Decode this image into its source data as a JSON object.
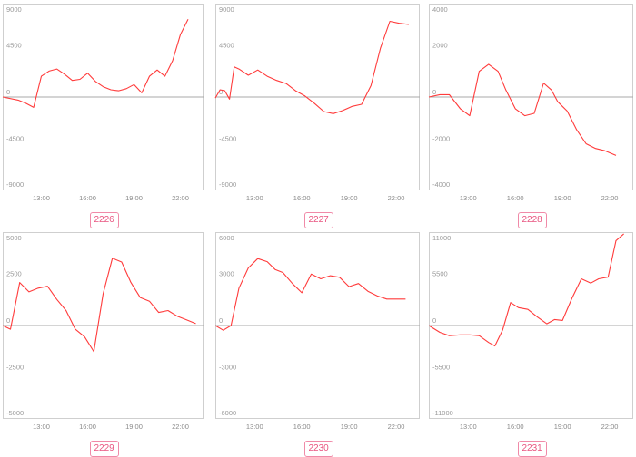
{
  "chart_data": [
    {
      "type": "line",
      "title": "2226",
      "x_ticks": [
        "13:00",
        "16:00",
        "19:00",
        "22:00"
      ],
      "y_ticks": [
        "9000",
        "4500",
        "0",
        "-4500",
        "-9000"
      ],
      "ylim": [
        -9000,
        9000
      ],
      "xlim": [
        10.5,
        23.5
      ],
      "series": [
        {
          "x": [
            10.5,
            11.5,
            12.0,
            12.5,
            13.0,
            13.5,
            14.0,
            14.5,
            15.0,
            15.5,
            16.0,
            16.5,
            17.0,
            17.5,
            18.0,
            18.5,
            19.0,
            19.5,
            20.0,
            20.5,
            21.0,
            21.5,
            22.0,
            22.5
          ],
          "values": [
            0,
            -300,
            -600,
            -1000,
            2000,
            2500,
            2700,
            2200,
            1600,
            1700,
            2300,
            1500,
            1000,
            700,
            600,
            800,
            1200,
            400,
            2000,
            2600,
            2000,
            3500,
            6000,
            7500
          ]
        }
      ]
    },
    {
      "type": "line",
      "title": "2227",
      "x_ticks": [
        "13:00",
        "16:00",
        "19:00",
        "22:00"
      ],
      "y_ticks": [
        "9000",
        "4500",
        "0",
        "-4500",
        "-9000"
      ],
      "ylim": [
        -9000,
        9000
      ],
      "xlim": [
        10.5,
        23.5
      ],
      "series": [
        {
          "x": [
            10.5,
            10.8,
            11.1,
            11.4,
            11.7,
            12.0,
            12.6,
            13.2,
            13.8,
            14.4,
            15.0,
            15.6,
            16.2,
            16.8,
            17.4,
            18.0,
            18.6,
            19.2,
            19.8,
            20.4,
            21.0,
            21.6,
            22.2,
            22.8
          ],
          "values": [
            -100,
            700,
            600,
            -200,
            2900,
            2700,
            2100,
            2600,
            2000,
            1600,
            1300,
            600,
            100,
            -600,
            -1400,
            -1600,
            -1300,
            -900,
            -700,
            1100,
            4700,
            7300,
            7100,
            7000
          ]
        }
      ]
    },
    {
      "type": "line",
      "title": "2228",
      "x_ticks": [
        "13:00",
        "16:00",
        "19:00",
        "22:00"
      ],
      "y_ticks": [
        "4000",
        "2000",
        "0",
        "-2000",
        "-4000"
      ],
      "ylim": [
        -4000,
        4000
      ],
      "xlim": [
        10.5,
        23.5
      ],
      "series": [
        {
          "x": [
            10.5,
            11.2,
            11.8,
            12.5,
            13.1,
            13.7,
            14.3,
            14.9,
            15.4,
            16.0,
            16.6,
            17.2,
            17.8,
            18.3,
            18.7,
            19.3,
            19.9,
            20.5,
            21.1,
            21.7,
            22.4
          ],
          "values": [
            0,
            100,
            100,
            -500,
            -800,
            1100,
            1400,
            1100,
            300,
            -500,
            -800,
            -700,
            600,
            300,
            -200,
            -600,
            -1400,
            -2000,
            -2200,
            -2300,
            -2500
          ]
        }
      ]
    },
    {
      "type": "line",
      "title": "2229",
      "x_ticks": [
        "13:00",
        "16:00",
        "19:00",
        "22:00"
      ],
      "y_ticks": [
        "5000",
        "2500",
        "0",
        "-2500",
        "-5000"
      ],
      "ylim": [
        -5000,
        5000
      ],
      "xlim": [
        10.5,
        23.5
      ],
      "series": [
        {
          "x": [
            10.5,
            11.0,
            11.6,
            12.2,
            12.8,
            13.4,
            14.0,
            14.6,
            15.2,
            15.8,
            16.4,
            17.0,
            17.6,
            18.2,
            18.8,
            19.4,
            20.0,
            20.6,
            21.2,
            21.8,
            22.4,
            23.0
          ],
          "values": [
            0,
            -200,
            2300,
            1800,
            2000,
            2100,
            1400,
            800,
            -200,
            -600,
            -1400,
            1700,
            3600,
            3400,
            2300,
            1500,
            1300,
            700,
            800,
            500,
            300,
            100
          ]
        }
      ]
    },
    {
      "type": "line",
      "title": "2230",
      "x_ticks": [
        "13:00",
        "16:00",
        "19:00",
        "22:00"
      ],
      "y_ticks": [
        "6000",
        "3000",
        "0",
        "-3000",
        "-6000"
      ],
      "ylim": [
        -6000,
        6000
      ],
      "xlim": [
        10.5,
        23.5
      ],
      "series": [
        {
          "x": [
            10.5,
            11.0,
            11.5,
            12.0,
            12.6,
            13.2,
            13.8,
            14.3,
            14.8,
            15.4,
            16.0,
            16.6,
            17.2,
            17.8,
            18.4,
            19.0,
            19.6,
            20.2,
            20.8,
            21.4,
            22.0,
            22.6
          ],
          "values": [
            0,
            -300,
            0,
            2400,
            3700,
            4300,
            4100,
            3600,
            3400,
            2700,
            2100,
            3300,
            3000,
            3200,
            3100,
            2500,
            2700,
            2200,
            1900,
            1700,
            1700,
            1700
          ]
        }
      ]
    },
    {
      "type": "line",
      "title": "2231",
      "x_ticks": [
        "13:00",
        "16:00",
        "19:00",
        "22:00"
      ],
      "y_ticks": [
        "11000",
        "5500",
        "0",
        "-5500",
        "-11000"
      ],
      "ylim": [
        -11000,
        11000
      ],
      "xlim": [
        10.5,
        23.5
      ],
      "series": [
        {
          "x": [
            10.5,
            11.2,
            11.8,
            12.5,
            13.1,
            13.7,
            14.3,
            14.7,
            15.2,
            15.7,
            16.2,
            16.8,
            17.4,
            18.0,
            18.5,
            19.0,
            19.6,
            20.2,
            20.8,
            21.3,
            21.9,
            22.4,
            22.9
          ],
          "values": [
            0,
            -800,
            -1200,
            -1100,
            -1100,
            -1200,
            -2000,
            -2400,
            -500,
            2700,
            2100,
            1900,
            1000,
            200,
            700,
            600,
            3200,
            5500,
            5000,
            5500,
            5700,
            10000,
            10800
          ]
        }
      ]
    }
  ]
}
